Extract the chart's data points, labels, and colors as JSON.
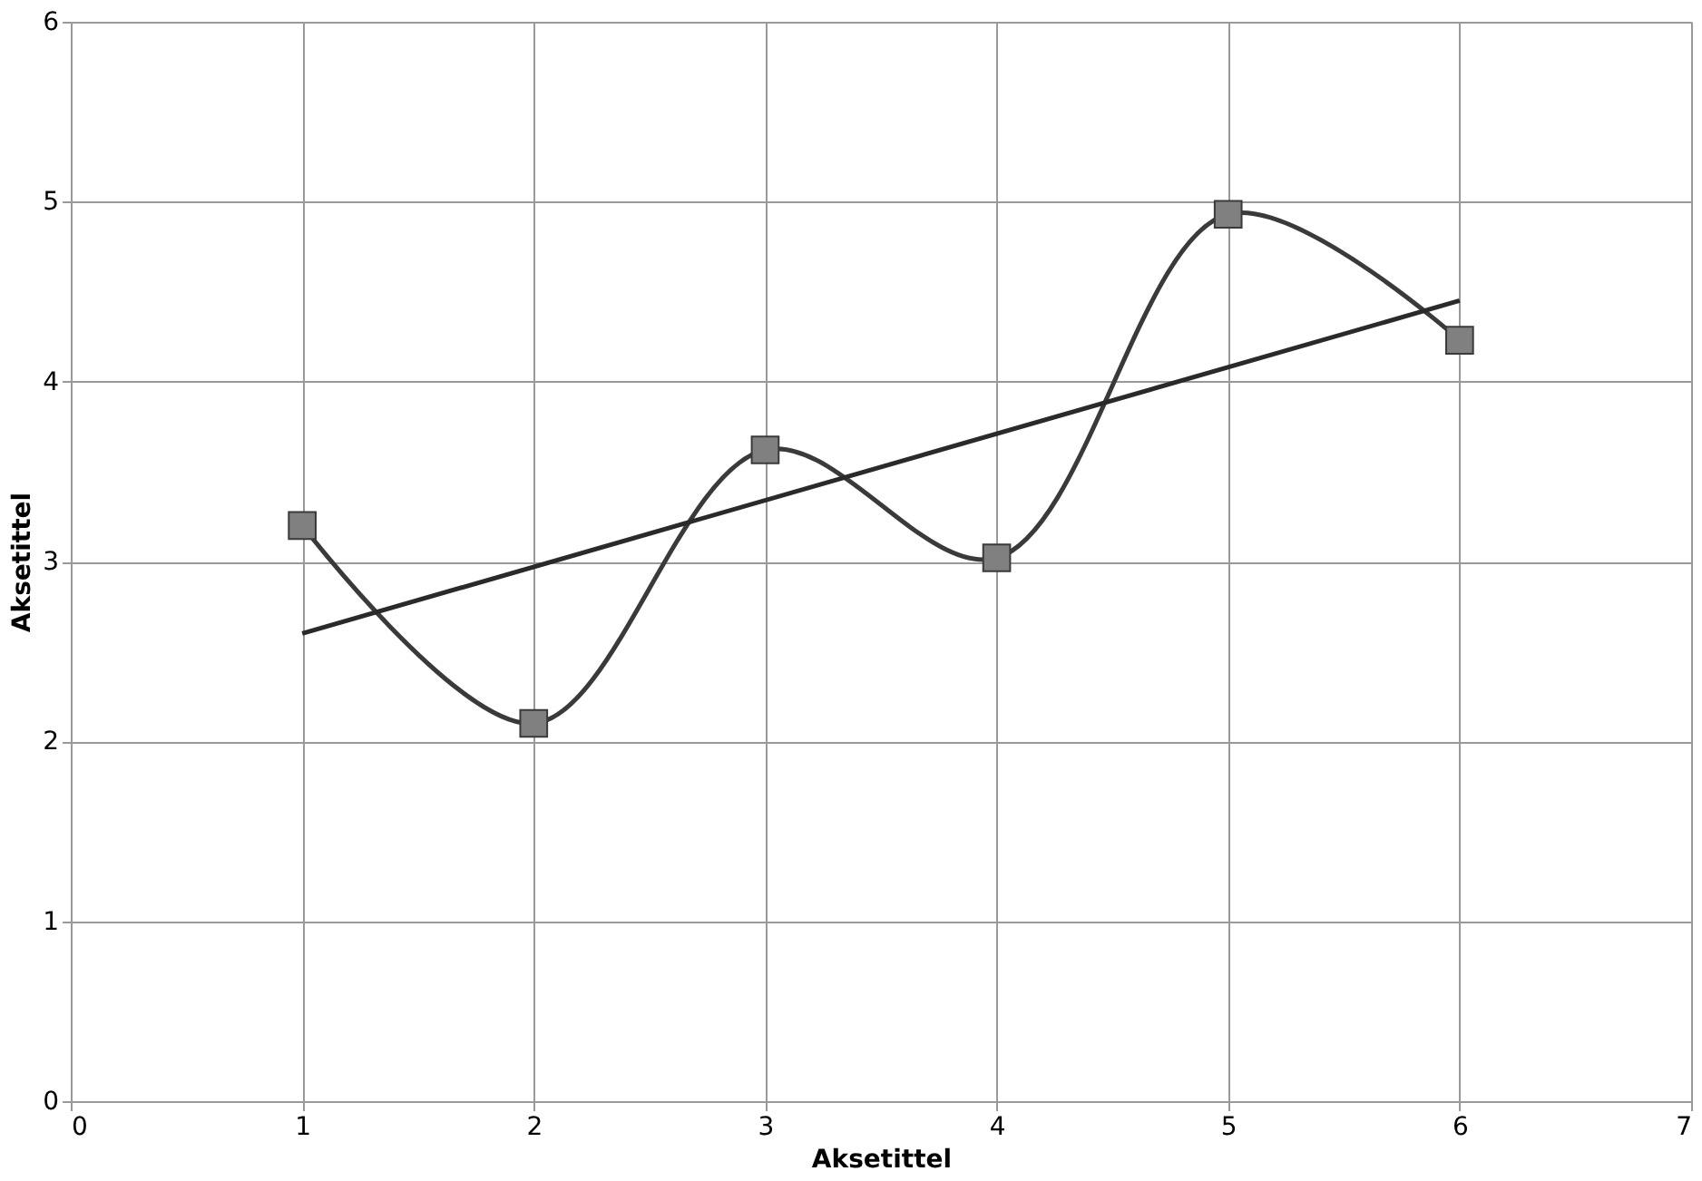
{
  "chart_data": {
    "type": "line",
    "xlabel": "Aksetittel",
    "ylabel": "Aksetittel",
    "xlim": [
      0,
      7
    ],
    "xticks": [
      0,
      1,
      2,
      3,
      4,
      5,
      6,
      7
    ],
    "ylim": [
      0,
      6
    ],
    "yticks": [
      0,
      1,
      2,
      3,
      4,
      5,
      6
    ],
    "grid": true,
    "series": [
      {
        "x": [
          1,
          2,
          3,
          4,
          5,
          6
        ],
        "values": [
          3.2,
          2.1,
          3.62,
          3.02,
          4.93,
          4.23
        ],
        "color": "#3a3a3a",
        "marker": "square",
        "line_style": "solid"
      },
      {
        "x": [
          1,
          6
        ],
        "values": [
          2.6,
          4.45
        ],
        "color": "#2a2a2a",
        "marker": "none",
        "line_style": "solid"
      }
    ]
  }
}
